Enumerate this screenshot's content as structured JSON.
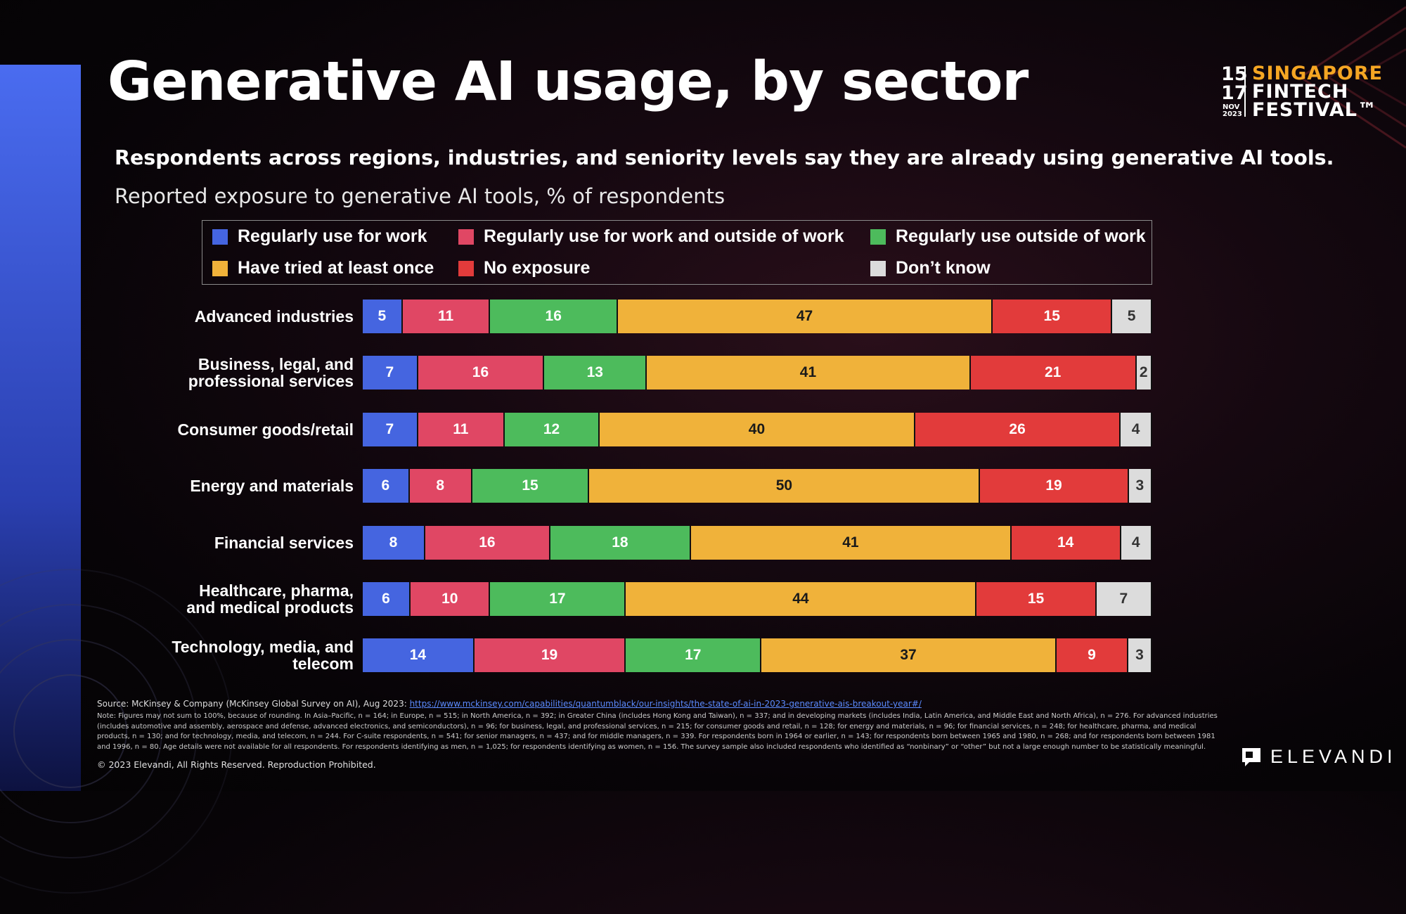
{
  "slide": {
    "title": "Generative AI usage, by sector",
    "subtitle": "Respondents across regions, industries, and seniority levels say they are already using generative AI tools.",
    "subtitle2": "Reported exposure to generative AI tools, % of respondents"
  },
  "logo": {
    "days_top": "15",
    "days_bottom": "17",
    "month": "NOV",
    "year": "2023",
    "line1": "SINGAPORE",
    "line2": "FINTECH",
    "line3": "FESTIVAL™"
  },
  "legend": [
    {
      "label": "Regularly use for work",
      "color": "#4565e0"
    },
    {
      "label": "Regularly use for work and outside of work",
      "color": "#e04764"
    },
    {
      "label": "Regularly use outside of work",
      "color": "#4dbb5c"
    },
    {
      "label": "Have tried at least once",
      "color": "#f0b23a"
    },
    {
      "label": "No exposure",
      "color": "#e23b3b"
    },
    {
      "label": "Don’t know",
      "color": "#dcdcdc"
    }
  ],
  "chart_data": {
    "type": "bar",
    "orientation": "horizontal",
    "stacked": true,
    "title": "Reported exposure to generative AI tools, % of respondents",
    "categories": [
      "Advanced industries",
      "Business, legal, and professional services",
      "Consumer goods/retail",
      "Energy and materials",
      "Financial services",
      "Healthcare, pharma, and medical products",
      "Technology, media, and telecom"
    ],
    "category_lines": [
      [
        "Advanced industries"
      ],
      [
        "Business, legal, and",
        "professional services"
      ],
      [
        "Consumer goods/retail"
      ],
      [
        "Energy and materials"
      ],
      [
        "Financial services"
      ],
      [
        "Healthcare, pharma,",
        "and medical products"
      ],
      [
        "Technology, media, and",
        "telecom"
      ]
    ],
    "series": [
      {
        "name": "Regularly use for work",
        "color": "#4565e0",
        "values": [
          5,
          7,
          7,
          6,
          8,
          6,
          14
        ]
      },
      {
        "name": "Regularly use for work and outside of work",
        "color": "#e04764",
        "values": [
          11,
          16,
          11,
          8,
          16,
          10,
          19
        ]
      },
      {
        "name": "Regularly use outside of work",
        "color": "#4dbb5c",
        "values": [
          16,
          13,
          12,
          15,
          18,
          17,
          17
        ]
      },
      {
        "name": "Have tried at least once",
        "color": "#f0b23a",
        "values": [
          47,
          41,
          40,
          50,
          41,
          44,
          37
        ]
      },
      {
        "name": "No exposure",
        "color": "#e23b3b",
        "values": [
          15,
          21,
          26,
          19,
          14,
          15,
          9
        ]
      },
      {
        "name": "Don’t know",
        "color": "#dcdcdc",
        "values": [
          5,
          2,
          4,
          3,
          4,
          7,
          3
        ]
      }
    ],
    "xlim": [
      0,
      100
    ]
  },
  "footer": {
    "source_prefix": "Source: McKinsey & Company (McKinsey Global Survey on AI), Aug 2023: ",
    "source_link": "https://www.mckinsey.com/capabilities/quantumblack/our-insights/the-state-of-ai-in-2023-generative-ais-breakout-year#/",
    "note": "Note: Figures may not sum to 100%, because of rounding. In Asia–Pacific, n = 164; in Europe, n = 515; in North America, n = 392; in Greater China (includes Hong Kong and Taiwan), n = 337; and in developing markets (includes India, Latin America, and Middle East and North Africa), n = 276. For advanced industries (includes automotive and assembly, aerospace and defense, advanced electronics, and semiconductors), n = 96; for business, legal, and professional services, n = 215; for consumer goods and retail, n = 128; for energy and materials, n = 96; for financial services, n = 248; for healthcare, pharma, and medical products, n = 130; and for technology, media, and telecom, n = 244. For C-suite respondents, n = 541; for senior managers, n = 437; and for middle managers, n = 339. For respondents born in 1964 or earlier, n = 143; for respondents born between 1965 and 1980, n = 268; and for respondents born between 1981 and 1996, n = 80. Age details were not available for all respondents. For respondents identifying as men, n = 1,025; for respondents identifying as women, n = 156. The survey sample also included respondents who identified as “nonbinary” or “other” but not a large enough number to be statistically meaningful.",
    "copyright": "© 2023 Elevandi, All Rights Reserved. Reproduction Prohibited.",
    "brand": "ELEVANDI"
  }
}
